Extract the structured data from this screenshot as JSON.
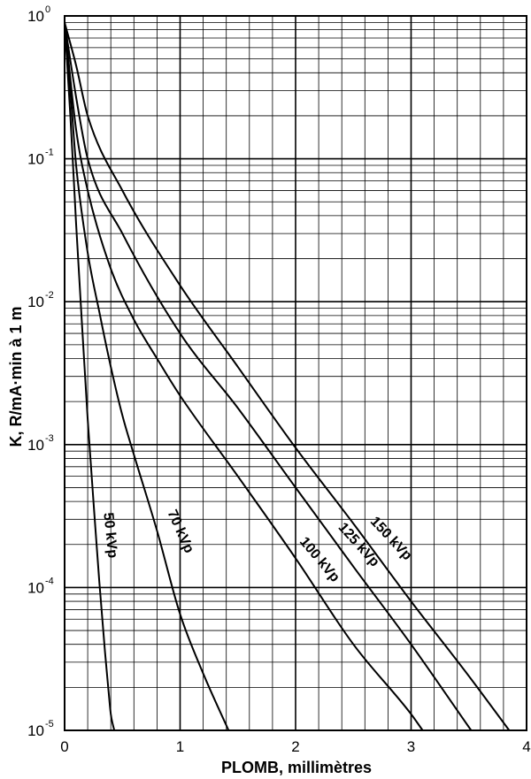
{
  "chart_data": {
    "type": "line",
    "xlabel": "PLOMB, millimètres",
    "ylabel": "K, R/mA·min à 1 m",
    "xlim": [
      0,
      4
    ],
    "ylim": [
      1e-05,
      1
    ],
    "y_scale": "log",
    "grid": true,
    "x_ticks": [
      {
        "value": 0,
        "label": "0"
      },
      {
        "value": 1,
        "label": "1"
      },
      {
        "value": 2,
        "label": "2"
      },
      {
        "value": 3,
        "label": "3"
      },
      {
        "value": 4,
        "label": "4"
      }
    ],
    "y_ticks": [
      {
        "value": 1,
        "base": "10",
        "exp": "0"
      },
      {
        "value": 0.1,
        "base": "10",
        "exp": "-1"
      },
      {
        "value": 0.01,
        "base": "10",
        "exp": "-2"
      },
      {
        "value": 0.001,
        "base": "10",
        "exp": "-3"
      },
      {
        "value": 0.0001,
        "base": "10",
        "exp": "-4"
      },
      {
        "value": 1e-05,
        "base": "10",
        "exp": "-5"
      }
    ],
    "series": [
      {
        "name": "50 kVp",
        "x": [
          0,
          0.05,
          0.1,
          0.15,
          0.2,
          0.25,
          0.3,
          0.35,
          0.38,
          0.4,
          0.43
        ],
        "y": [
          0.9,
          0.2,
          0.035,
          0.007,
          0.0015,
          0.0004,
          0.00011,
          3.5e-05,
          1.9e-05,
          1.3e-05,
          1e-05
        ]
      },
      {
        "name": "70 kVp",
        "x": [
          0,
          0.05,
          0.1,
          0.2,
          0.3,
          0.4,
          0.5,
          0.6,
          0.8,
          1.0,
          1.2,
          1.42
        ],
        "y": [
          0.9,
          0.3,
          0.09,
          0.022,
          0.0085,
          0.0035,
          0.0016,
          0.00085,
          0.00025,
          6.5e-05,
          2.5e-05,
          1e-05
        ]
      },
      {
        "name": "100 kVp",
        "x": [
          0,
          0.1,
          0.2,
          0.4,
          0.6,
          0.8,
          1.0,
          1.5,
          2.0,
          2.5,
          3.0,
          3.1
        ],
        "y": [
          0.9,
          0.16,
          0.06,
          0.017,
          0.0075,
          0.004,
          0.0022,
          0.0006,
          0.00016,
          4e-05,
          1.3e-05,
          1e-05
        ]
      },
      {
        "name": "125 kVp",
        "x": [
          0,
          0.1,
          0.2,
          0.5,
          1.0,
          1.5,
          2.0,
          2.5,
          3.0,
          3.52
        ],
        "y": [
          0.9,
          0.27,
          0.1,
          0.03,
          0.006,
          0.0018,
          0.0005,
          0.00014,
          4e-05,
          1e-05
        ]
      },
      {
        "name": "150 kVp",
        "x": [
          0,
          0.1,
          0.2,
          0.5,
          1.0,
          1.5,
          2.0,
          2.5,
          3.0,
          3.5,
          3.85
        ],
        "y": [
          0.9,
          0.45,
          0.2,
          0.06,
          0.013,
          0.0035,
          0.00095,
          0.00028,
          8e-05,
          2.4e-05,
          1e-05
        ]
      }
    ]
  }
}
